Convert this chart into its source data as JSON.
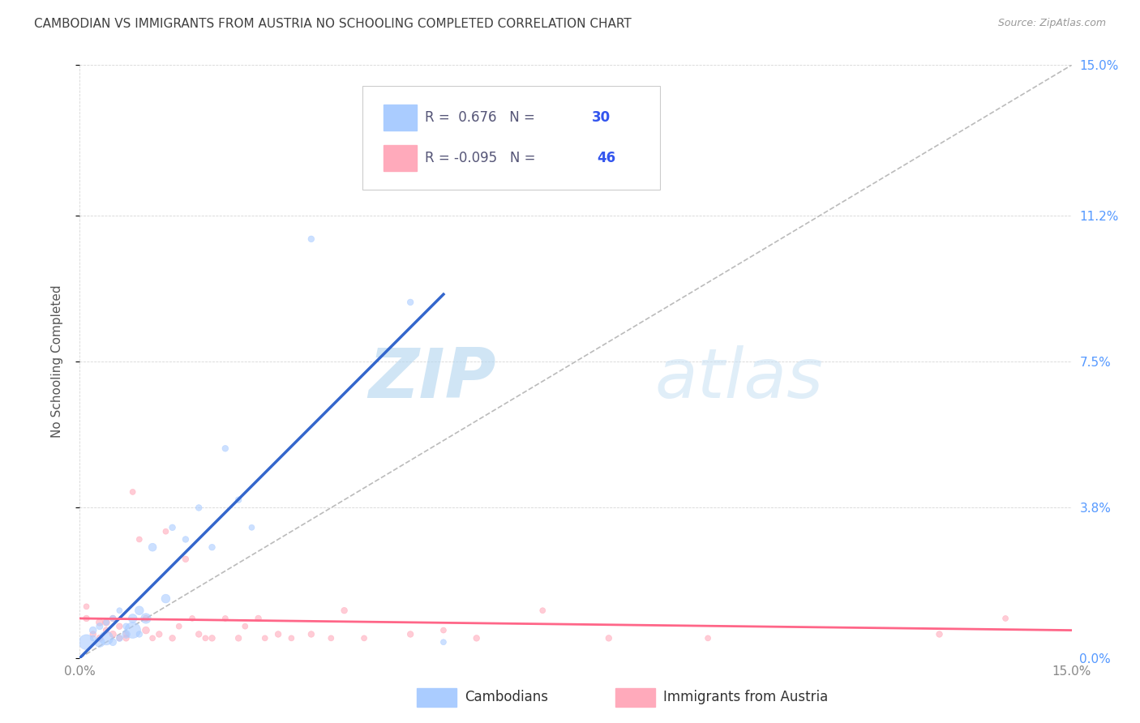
{
  "title": "CAMBODIAN VS IMMIGRANTS FROM AUSTRIA NO SCHOOLING COMPLETED CORRELATION CHART",
  "source": "Source: ZipAtlas.com",
  "ylabel": "No Schooling Completed",
  "xlim": [
    0.0,
    0.15
  ],
  "ylim": [
    0.0,
    0.15
  ],
  "ytick_positions": [
    0.0,
    0.038,
    0.075,
    0.112,
    0.15
  ],
  "ytick_labels": [
    "0.0%",
    "3.8%",
    "7.5%",
    "11.2%",
    "15.0%"
  ],
  "grid_color": "#cccccc",
  "background_color": "#ffffff",
  "title_color": "#404040",
  "title_fontsize": 11,
  "blue_color": "#aaccff",
  "pink_color": "#ffaabb",
  "blue_line_color": "#3366cc",
  "pink_line_color": "#ff6688",
  "diagonal_color": "#bbbbbb",
  "watermark_zip": "ZIP",
  "watermark_atlas": "atlas",
  "cambodian_x": [
    0.001,
    0.002,
    0.002,
    0.003,
    0.003,
    0.004,
    0.004,
    0.005,
    0.005,
    0.006,
    0.006,
    0.007,
    0.007,
    0.008,
    0.008,
    0.009,
    0.009,
    0.01,
    0.011,
    0.013,
    0.014,
    0.016,
    0.018,
    0.02,
    0.022,
    0.024,
    0.026,
    0.035,
    0.05,
    0.055
  ],
  "cambodian_y": [
    0.004,
    0.005,
    0.007,
    0.004,
    0.008,
    0.005,
    0.009,
    0.004,
    0.01,
    0.005,
    0.012,
    0.006,
    0.008,
    0.007,
    0.01,
    0.006,
    0.012,
    0.01,
    0.028,
    0.015,
    0.033,
    0.03,
    0.038,
    0.028,
    0.053,
    0.04,
    0.033,
    0.106,
    0.09,
    0.004
  ],
  "cambodian_size": [
    180,
    25,
    40,
    80,
    35,
    150,
    25,
    40,
    30,
    35,
    25,
    50,
    30,
    200,
    60,
    30,
    60,
    80,
    50,
    60,
    30,
    30,
    30,
    30,
    30,
    30,
    25,
    30,
    30,
    25
  ],
  "austria_x": [
    0.001,
    0.001,
    0.002,
    0.003,
    0.003,
    0.004,
    0.004,
    0.005,
    0.005,
    0.006,
    0.006,
    0.007,
    0.007,
    0.008,
    0.009,
    0.01,
    0.01,
    0.011,
    0.012,
    0.013,
    0.014,
    0.015,
    0.016,
    0.017,
    0.018,
    0.019,
    0.02,
    0.022,
    0.024,
    0.025,
    0.027,
    0.028,
    0.03,
    0.032,
    0.035,
    0.038,
    0.04,
    0.043,
    0.05,
    0.055,
    0.06,
    0.07,
    0.08,
    0.095,
    0.13,
    0.14
  ],
  "austria_y": [
    0.01,
    0.013,
    0.006,
    0.009,
    0.005,
    0.007,
    0.009,
    0.006,
    0.01,
    0.005,
    0.008,
    0.006,
    0.005,
    0.042,
    0.03,
    0.007,
    0.01,
    0.005,
    0.006,
    0.032,
    0.005,
    0.008,
    0.025,
    0.01,
    0.006,
    0.005,
    0.005,
    0.01,
    0.005,
    0.008,
    0.01,
    0.005,
    0.006,
    0.005,
    0.006,
    0.005,
    0.012,
    0.005,
    0.006,
    0.007,
    0.005,
    0.012,
    0.005,
    0.005,
    0.006,
    0.01
  ],
  "austria_size": [
    30,
    25,
    30,
    40,
    35,
    30,
    40,
    35,
    30,
    25,
    30,
    25,
    30,
    25,
    25,
    40,
    30,
    25,
    30,
    25,
    30,
    25,
    30,
    25,
    30,
    25,
    30,
    25,
    30,
    25,
    30,
    25,
    30,
    25,
    30,
    25,
    30,
    25,
    30,
    25,
    30,
    25,
    30,
    25,
    30,
    25
  ],
  "blue_trend_x0": 0.0,
  "blue_trend_y0": 0.0,
  "blue_trend_x1": 0.055,
  "blue_trend_y1": 0.092,
  "pink_trend_x0": 0.0,
  "pink_trend_y0": 0.01,
  "pink_trend_x1": 0.15,
  "pink_trend_y1": 0.007
}
